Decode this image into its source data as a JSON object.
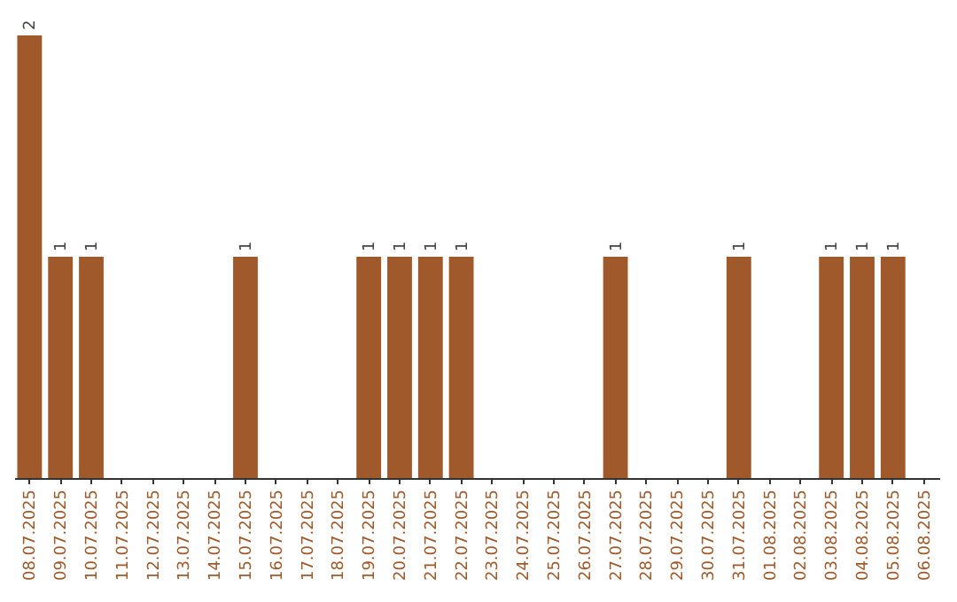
{
  "chart_data": {
    "type": "bar",
    "categories": [
      "08.07.2025",
      "09.07.2025",
      "10.07.2025",
      "11.07.2025",
      "12.07.2025",
      "13.07.2025",
      "14.07.2025",
      "15.07.2025",
      "16.07.2025",
      "17.07.2025",
      "18.07.2025",
      "19.07.2025",
      "20.07.2025",
      "21.07.2025",
      "22.07.2025",
      "23.07.2025",
      "24.07.2025",
      "25.07.2025",
      "26.07.2025",
      "27.07.2025",
      "28.07.2025",
      "29.07.2025",
      "30.07.2025",
      "31.07.2025",
      "01.08.2025",
      "02.08.2025",
      "03.08.2025",
      "04.08.2025",
      "05.08.2025",
      "06.08.2025"
    ],
    "values": [
      2,
      1,
      1,
      0,
      0,
      0,
      0,
      1,
      0,
      0,
      0,
      1,
      1,
      1,
      1,
      0,
      0,
      0,
      0,
      1,
      0,
      0,
      0,
      1,
      0,
      0,
      1,
      1,
      1,
      0
    ],
    "value_labels": [
      "2",
      "1",
      "1",
      null,
      null,
      null,
      null,
      "1",
      null,
      null,
      null,
      "1",
      "1",
      "1",
      "1",
      null,
      null,
      null,
      null,
      "1",
      null,
      null,
      null,
      "1",
      null,
      null,
      "1",
      "1",
      "1",
      null
    ],
    "color": "#a0592a"
  }
}
